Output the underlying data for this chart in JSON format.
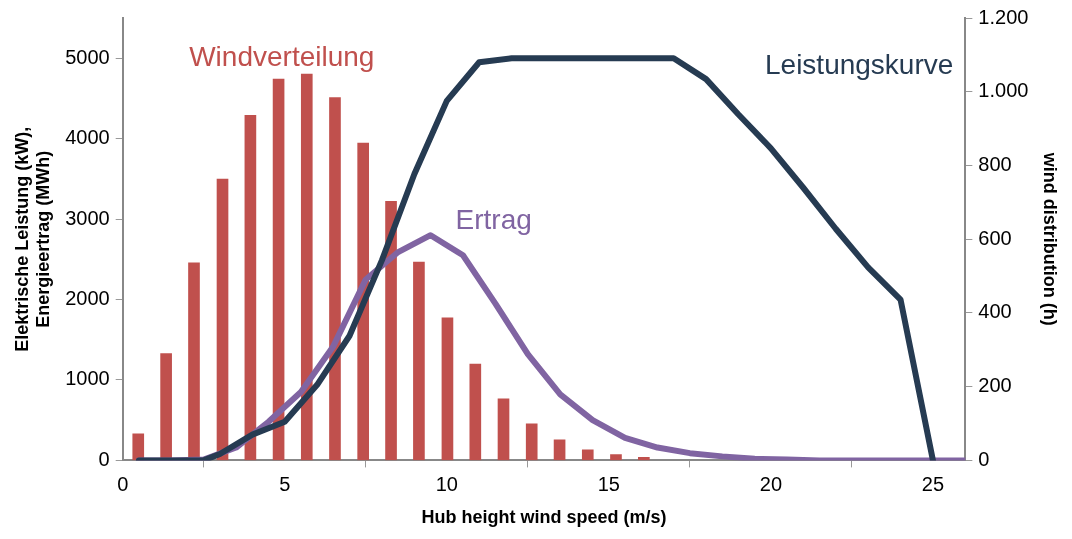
{
  "chart_data": {
    "type": "line",
    "xlabel": "Hub height wind speed (m/s)",
    "ylabel": "Elektrische Leistung (kW), Energieertrag (MWh)",
    "y2label": "wind distribution (h)",
    "xlim": [
      0,
      26
    ],
    "xticks": [
      0,
      5,
      10,
      15,
      20,
      25
    ],
    "ylim": [
      0,
      5500
    ],
    "yticks": [
      0,
      1000,
      2000,
      3000,
      4000,
      5000
    ],
    "y2lim": [
      0,
      1200
    ],
    "y2ticks": [
      0,
      200,
      400,
      600,
      800,
      {
        "value": 1000,
        "label": "1.000"
      },
      {
        "value": 1200,
        "label": "1.200"
      }
    ],
    "grid": false,
    "legend": false,
    "marker": "none",
    "line_style": "solid",
    "series": [
      {
        "name": "Windverteilung",
        "type": "bar",
        "axis": "y2",
        "color": "#c0504d",
        "x": [
          0.48,
          1.34,
          2.2,
          3.08,
          3.94,
          4.81,
          5.68,
          6.55,
          7.42,
          8.28,
          9.14,
          10.02,
          10.88,
          11.75,
          12.62,
          13.48,
          14.35,
          15.22,
          16.08
        ],
        "values": [
          72,
          290,
          536,
          763,
          936,
          1034,
          1048,
          984,
          861,
          703,
          538,
          387,
          261,
          167,
          99,
          56,
          29,
          16,
          8
        ]
      },
      {
        "name": "Leistungskurve",
        "color": "#263b52",
        "x": [
          0.5,
          1.5,
          2.5,
          3,
          4,
          5,
          6,
          7,
          8,
          9,
          10,
          11,
          12,
          13,
          14,
          15,
          16,
          17,
          18,
          19,
          20,
          21,
          22,
          23,
          24,
          25
        ],
        "values": [
          0,
          0,
          0,
          80,
          320,
          480,
          940,
          1550,
          2490,
          3560,
          4470,
          4950,
          5000,
          5000,
          5000,
          5000,
          5000,
          5000,
          4740,
          4300,
          3880,
          3390,
          2880,
          2400,
          2000,
          0
        ]
      },
      {
        "name": "Ertrag",
        "color": "#8064a2",
        "x": [
          0.5,
          1.5,
          2.5,
          3.5,
          4.5,
          5.5,
          6.5,
          7.5,
          8.5,
          9.5,
          10.5,
          11.5,
          12.5,
          13.5,
          14.5,
          15.5,
          16.5,
          17.5,
          18.5,
          19.5,
          20.5,
          21.5,
          26
        ],
        "values": [
          0,
          0,
          10,
          160,
          480,
          850,
          1420,
          2250,
          2590,
          2800,
          2550,
          1950,
          1320,
          820,
          500,
          280,
          160,
          90,
          50,
          20,
          10,
          0,
          0
        ]
      }
    ]
  }
}
